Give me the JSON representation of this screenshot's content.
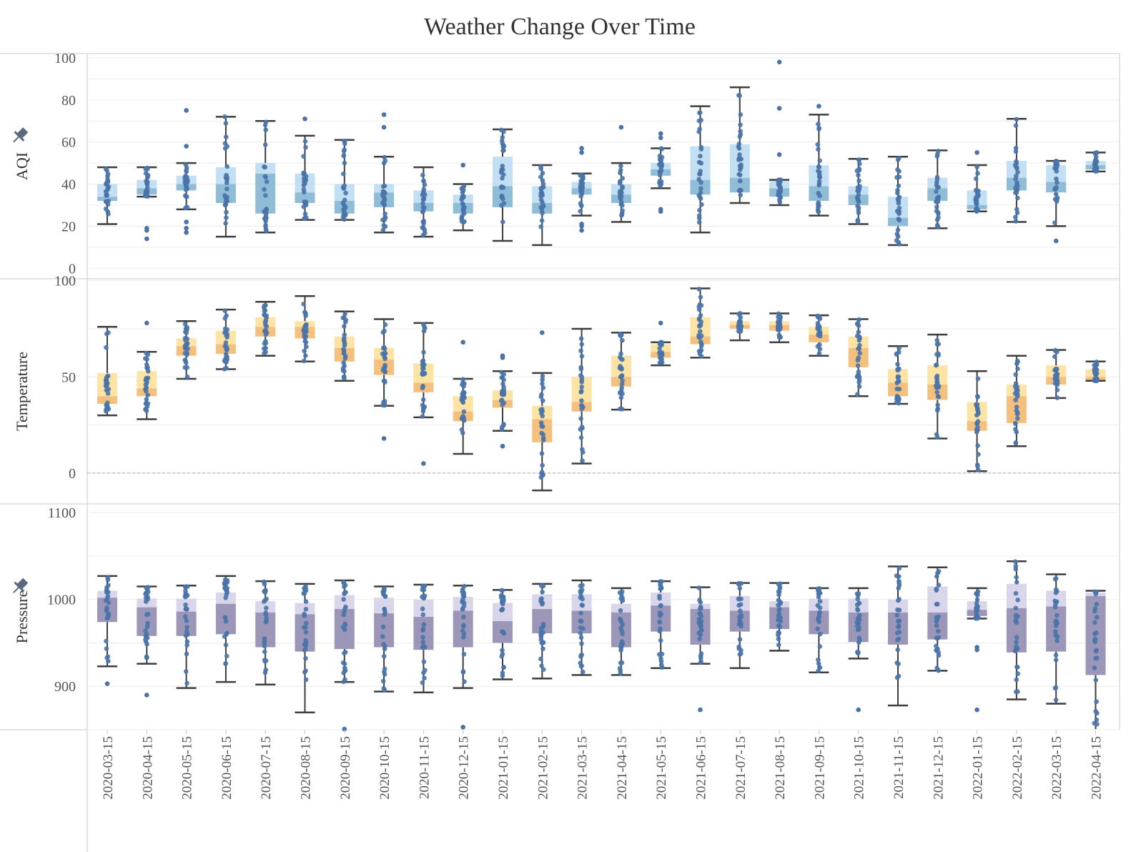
{
  "chart_data": {
    "type": "box",
    "title": "Weather Change Over Time",
    "categories": [
      "2020-03-15",
      "2020-04-15",
      "2020-05-15",
      "2020-06-15",
      "2020-07-15",
      "2020-08-15",
      "2020-09-15",
      "2020-10-15",
      "2020-11-15",
      "2020-12-15",
      "2021-01-15",
      "2021-02-15",
      "2021-03-15",
      "2021-04-15",
      "2021-05-15",
      "2021-06-15",
      "2021-07-15",
      "2021-08-15",
      "2021-09-15",
      "2021-10-15",
      "2021-11-15",
      "2021-12-15",
      "2022-01-15",
      "2022-02-15",
      "2022-03-15",
      "2022-04-15"
    ],
    "grid": true,
    "panels": [
      {
        "name": "AQI",
        "ylabel": "AQI",
        "pinned": true,
        "ylim": [
          -5,
          102
        ],
        "yticks": [
          0,
          20,
          40,
          60,
          80,
          100
        ],
        "colors": {
          "upper": "#c3dff3",
          "lower": "#8fbcd6"
        },
        "boxes": [
          {
            "min": 21,
            "q1": 32,
            "median": 34,
            "q3": 40,
            "max": 48
          },
          {
            "min": 34,
            "q1": 35,
            "median": 38,
            "q3": 42,
            "max": 48
          },
          {
            "min": 28,
            "q1": 37,
            "median": 40,
            "q3": 44,
            "max": 50
          },
          {
            "min": 15,
            "q1": 31,
            "median": 40,
            "q3": 48,
            "max": 72
          },
          {
            "min": 17,
            "q1": 26,
            "median": 45,
            "q3": 50,
            "max": 70
          },
          {
            "min": 23,
            "q1": 31,
            "median": 36,
            "q3": 45,
            "max": 63
          },
          {
            "min": 23,
            "q1": 26,
            "median": 32,
            "q3": 40,
            "max": 61
          },
          {
            "min": 17,
            "q1": 29,
            "median": 36,
            "q3": 40,
            "max": 53
          },
          {
            "min": 15,
            "q1": 27,
            "median": 31,
            "q3": 37,
            "max": 48
          },
          {
            "min": 18,
            "q1": 26,
            "median": 31,
            "q3": 35,
            "max": 40
          },
          {
            "min": 13,
            "q1": 29,
            "median": 39,
            "q3": 53,
            "max": 66
          },
          {
            "min": 11,
            "q1": 26,
            "median": 31,
            "q3": 39,
            "max": 49
          },
          {
            "min": 25,
            "q1": 35,
            "median": 38,
            "q3": 41,
            "max": 45
          },
          {
            "min": 22,
            "q1": 31,
            "median": 35,
            "q3": 40,
            "max": 50
          },
          {
            "min": 38,
            "q1": 44,
            "median": 47,
            "q3": 50,
            "max": 57
          },
          {
            "min": 17,
            "q1": 35,
            "median": 42,
            "q3": 58,
            "max": 77
          },
          {
            "min": 31,
            "q1": 36,
            "median": 43,
            "q3": 59,
            "max": 86
          },
          {
            "min": 30,
            "q1": 34,
            "median": 38,
            "q3": 42,
            "max": 42
          },
          {
            "min": 25,
            "q1": 32,
            "median": 39,
            "q3": 49,
            "max": 73
          },
          {
            "min": 21,
            "q1": 30,
            "median": 35,
            "q3": 39,
            "max": 52
          },
          {
            "min": 11,
            "q1": 20,
            "median": 24,
            "q3": 34,
            "max": 53
          },
          {
            "min": 19,
            "q1": 32,
            "median": 38,
            "q3": 43,
            "max": 56
          },
          {
            "min": 27,
            "q1": 28,
            "median": 30,
            "q3": 37,
            "max": 49
          },
          {
            "min": 22,
            "q1": 37,
            "median": 43,
            "q3": 51,
            "max": 71
          },
          {
            "min": 20,
            "q1": 36,
            "median": 41,
            "q3": 49,
            "max": 51
          },
          {
            "min": 46,
            "q1": 47,
            "median": 49,
            "q3": 51,
            "max": 55
          }
        ],
        "outliers": [
          [],
          [
            14,
            18,
            19
          ],
          [
            17,
            19,
            22,
            58,
            75
          ],
          [],
          [],
          [
            71
          ],
          [],
          [
            73,
            67
          ],
          [],
          [
            49
          ],
          [],
          [],
          [
            18,
            20,
            21,
            55,
            57
          ],
          [
            67
          ],
          [
            27,
            28,
            62,
            64
          ],
          [],
          [],
          [
            98,
            76,
            54
          ],
          [
            77
          ],
          [],
          [],
          [],
          [
            55
          ],
          [],
          [
            13
          ],
          []
        ]
      },
      {
        "name": "Temperature",
        "ylabel": "Temperature",
        "pinned": false,
        "ylim": [
          -16,
          101
        ],
        "yticks": [
          0,
          50,
          100
        ],
        "zero_line": true,
        "colors": {
          "upper": "#fde3a4",
          "lower": "#f3c07e"
        },
        "boxes": [
          {
            "min": 30,
            "q1": 36,
            "median": 40,
            "q3": 52,
            "max": 76
          },
          {
            "min": 28,
            "q1": 40,
            "median": 44,
            "q3": 53,
            "max": 63
          },
          {
            "min": 49,
            "q1": 61,
            "median": 66,
            "q3": 70,
            "max": 79
          },
          {
            "min": 54,
            "q1": 62,
            "median": 67,
            "q3": 74,
            "max": 85
          },
          {
            "min": 61,
            "q1": 71,
            "median": 76,
            "q3": 81,
            "max": 89
          },
          {
            "min": 58,
            "q1": 70,
            "median": 76,
            "q3": 79,
            "max": 92
          },
          {
            "min": 48,
            "q1": 58,
            "median": 65,
            "q3": 71,
            "max": 84
          },
          {
            "min": 35,
            "q1": 51,
            "median": 59,
            "q3": 65,
            "max": 80
          },
          {
            "min": 29,
            "q1": 42,
            "median": 47,
            "q3": 57,
            "max": 78
          },
          {
            "min": 10,
            "q1": 27,
            "median": 32,
            "q3": 40,
            "max": 49
          },
          {
            "min": 22,
            "q1": 34,
            "median": 38,
            "q3": 43,
            "max": 53
          },
          {
            "min": -9,
            "q1": 16,
            "median": 28,
            "q3": 35,
            "max": 52
          },
          {
            "min": 5,
            "q1": 32,
            "median": 37,
            "q3": 50,
            "max": 75
          },
          {
            "min": 33,
            "q1": 45,
            "median": 50,
            "q3": 61,
            "max": 73
          },
          {
            "min": 56,
            "q1": 60,
            "median": 63,
            "q3": 67,
            "max": 68
          },
          {
            "min": 60,
            "q1": 67,
            "median": 71,
            "q3": 81,
            "max": 96
          },
          {
            "min": 69,
            "q1": 75,
            "median": 77,
            "q3": 79,
            "max": 83
          },
          {
            "min": 68,
            "q1": 74,
            "median": 77,
            "q3": 79,
            "max": 83
          },
          {
            "min": 61,
            "q1": 68,
            "median": 72,
            "q3": 76,
            "max": 82
          },
          {
            "min": 40,
            "q1": 55,
            "median": 65,
            "q3": 71,
            "max": 80
          },
          {
            "min": 36,
            "q1": 40,
            "median": 47,
            "q3": 54,
            "max": 66
          },
          {
            "min": 18,
            "q1": 38,
            "median": 46,
            "q3": 56,
            "max": 72
          },
          {
            "min": 1,
            "q1": 22,
            "median": 27,
            "q3": 37,
            "max": 53
          },
          {
            "min": 14,
            "q1": 26,
            "median": 40,
            "q3": 46,
            "max": 61
          },
          {
            "min": 39,
            "q1": 46,
            "median": 50,
            "q3": 56,
            "max": 64
          },
          {
            "min": 48,
            "q1": 48,
            "median": 50,
            "q3": 54,
            "max": 58
          }
        ],
        "outliers": [
          [],
          [
            78
          ],
          [],
          [],
          [],
          [],
          [],
          [
            18
          ],
          [
            5
          ],
          [
            68
          ],
          [
            14,
            60,
            61
          ],
          [
            73
          ],
          [],
          [],
          [
            78
          ],
          [],
          [],
          [],
          [],
          [],
          [],
          [],
          [],
          [],
          [],
          []
        ]
      },
      {
        "name": "Pressure",
        "ylabel": "Pressure",
        "pinned": true,
        "ylim": [
          850,
          1110
        ],
        "yticks": [
          900,
          1000,
          1100
        ],
        "colors": {
          "upper": "#d9d5ea",
          "lower": "#9c96b8"
        },
        "boxes": [
          {
            "min": 923,
            "q1": 974,
            "median": 1002,
            "q3": 1010,
            "max": 1027
          },
          {
            "min": 926,
            "q1": 958,
            "median": 991,
            "q3": 1001,
            "max": 1015
          },
          {
            "min": 898,
            "q1": 958,
            "median": 986,
            "q3": 1001,
            "max": 1016
          },
          {
            "min": 905,
            "q1": 960,
            "median": 995,
            "q3": 1008,
            "max": 1027
          },
          {
            "min": 902,
            "q1": 945,
            "median": 985,
            "q3": 998,
            "max": 1021
          },
          {
            "min": 870,
            "q1": 940,
            "median": 983,
            "q3": 996,
            "max": 1018
          },
          {
            "min": 905,
            "q1": 943,
            "median": 989,
            "q3": 1005,
            "max": 1022
          },
          {
            "min": 894,
            "q1": 945,
            "median": 984,
            "q3": 1002,
            "max": 1015
          },
          {
            "min": 893,
            "q1": 942,
            "median": 980,
            "q3": 1000,
            "max": 1017
          },
          {
            "min": 898,
            "q1": 945,
            "median": 987,
            "q3": 1003,
            "max": 1016
          },
          {
            "min": 908,
            "q1": 950,
            "median": 975,
            "q3": 996,
            "max": 1011
          },
          {
            "min": 909,
            "q1": 961,
            "median": 989,
            "q3": 1006,
            "max": 1018
          },
          {
            "min": 913,
            "q1": 961,
            "median": 987,
            "q3": 1006,
            "max": 1022
          },
          {
            "min": 913,
            "q1": 945,
            "median": 985,
            "q3": 995,
            "max": 1013
          },
          {
            "min": 921,
            "q1": 963,
            "median": 993,
            "q3": 1008,
            "max": 1021
          },
          {
            "min": 926,
            "q1": 948,
            "median": 989,
            "q3": 995,
            "max": 1014
          },
          {
            "min": 921,
            "q1": 963,
            "median": 987,
            "q3": 1004,
            "max": 1019
          },
          {
            "min": 941,
            "q1": 966,
            "median": 991,
            "q3": 998,
            "max": 1019
          },
          {
            "min": 916,
            "q1": 960,
            "median": 987,
            "q3": 1001,
            "max": 1013
          },
          {
            "min": 932,
            "q1": 951,
            "median": 985,
            "q3": 1001,
            "max": 1013
          },
          {
            "min": 878,
            "q1": 948,
            "median": 985,
            "q3": 1000,
            "max": 1038
          },
          {
            "min": 918,
            "q1": 954,
            "median": 985,
            "q3": 1015,
            "max": 1037
          },
          {
            "min": 978,
            "q1": 981,
            "median": 988,
            "q3": 998,
            "max": 1013
          },
          {
            "min": 885,
            "q1": 939,
            "median": 990,
            "q3": 1018,
            "max": 1044
          },
          {
            "min": 880,
            "q1": 940,
            "median": 992,
            "q3": 1010,
            "max": 1029
          },
          {
            "min": 850,
            "q1": 913,
            "median": 1004,
            "q3": 1008,
            "max": 1010
          }
        ],
        "outliers": [
          [
            903
          ],
          [
            890
          ],
          [],
          [],
          [],
          [],
          [
            850
          ],
          [],
          [],
          [
            853
          ],
          [],
          [],
          [],
          [],
          [],
          [
            873
          ],
          [],
          [],
          [],
          [
            873
          ],
          [],
          [],
          [
            873,
            945,
            942
          ],
          [],
          [],
          []
        ]
      }
    ]
  }
}
